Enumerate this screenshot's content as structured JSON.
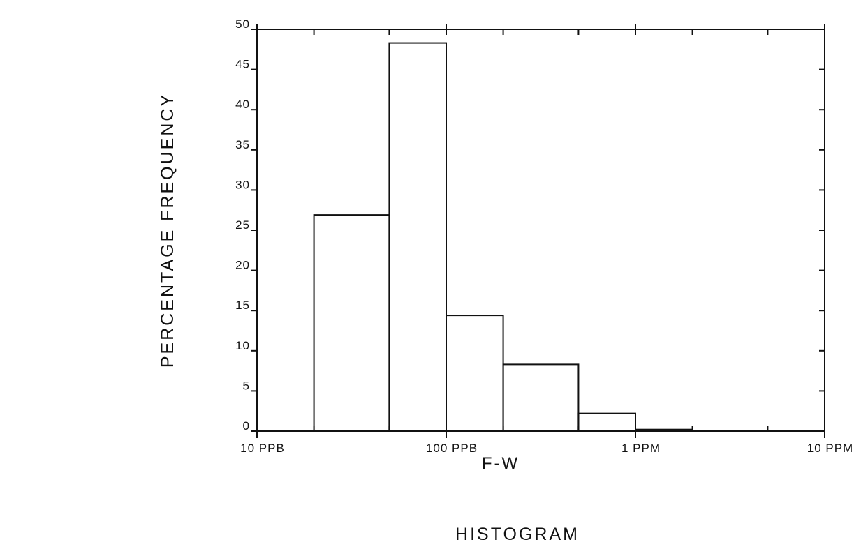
{
  "chart_data": {
    "type": "bar",
    "title": "HISTOGRAM",
    "xlabel": "F-W",
    "ylabel": "PERCENTAGE FREQUENCY",
    "x_scale": "log",
    "xlim": [
      10,
      10000
    ],
    "ylim": [
      0,
      50
    ],
    "x_tick_labels": [
      "10 PPB",
      "100 PPB",
      "1 PPM",
      "10 PPM"
    ],
    "x_tick_values": [
      10,
      100,
      1000,
      10000
    ],
    "y_tick_values": [
      0,
      5,
      10,
      15,
      20,
      25,
      30,
      35,
      40,
      45,
      50
    ],
    "y_tick_labels": [
      "0",
      "5",
      "10",
      "15",
      "20",
      "25",
      "30",
      "35",
      "40",
      "45",
      "50"
    ],
    "bins": [
      {
        "from": 20,
        "to": 50,
        "value": 26.9
      },
      {
        "from": 50,
        "to": 100,
        "value": 48.3
      },
      {
        "from": 100,
        "to": 200,
        "value": 14.4
      },
      {
        "from": 200,
        "to": 500,
        "value": 8.3
      },
      {
        "from": 500,
        "to": 1000,
        "value": 2.2
      },
      {
        "from": 1000,
        "to": 2000,
        "value": 0.2
      },
      {
        "from": 2000,
        "to": 10000,
        "value": 0
      }
    ],
    "grid": false,
    "colors": {
      "line": "#111111",
      "background": "#ffffff"
    }
  }
}
